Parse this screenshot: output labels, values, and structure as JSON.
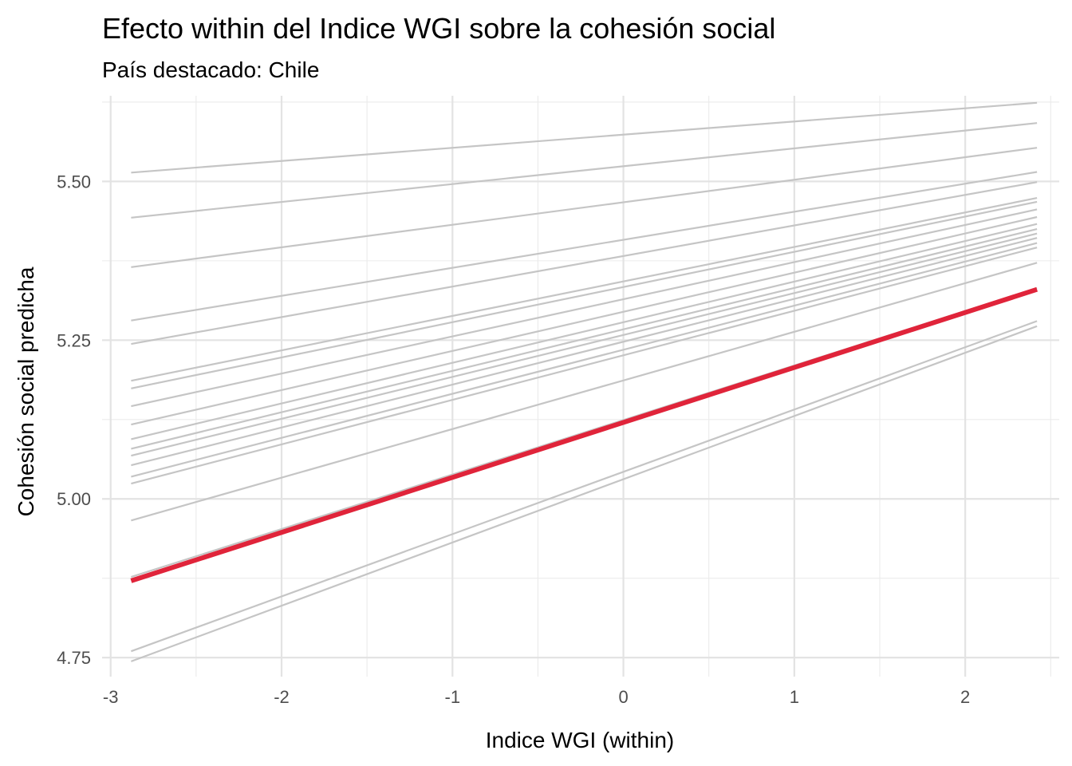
{
  "chart_data": {
    "type": "line",
    "title": "Efecto within del Indice WGI sobre la cohesión social",
    "subtitle": "País destacado: Chile",
    "xlabel": "Indice WGI (within)",
    "ylabel": "Cohesión social predicha",
    "xlim": [
      -3.05,
      2.55
    ],
    "ylim": [
      4.72,
      5.635
    ],
    "x_ticks": [
      -3,
      -2,
      -1,
      0,
      1,
      2
    ],
    "x_tick_labels": [
      "-3",
      "-2",
      "-1",
      "0",
      "1",
      "2"
    ],
    "y_ticks": [
      4.75,
      5.0,
      5.25,
      5.5
    ],
    "y_tick_labels": [
      "4.75",
      "5.00",
      "5.25",
      "5.50"
    ],
    "grid": true,
    "highlight_color": "#e0243a",
    "background_color": "#c5c5c5",
    "series": [
      {
        "x": [
          -2.88,
          2.42
        ],
        "y": [
          5.514,
          5.624
        ],
        "highlight": false
      },
      {
        "x": [
          -2.88,
          2.42
        ],
        "y": [
          5.443,
          5.592
        ],
        "highlight": false
      },
      {
        "x": [
          -2.88,
          2.42
        ],
        "y": [
          5.365,
          5.553
        ],
        "highlight": false
      },
      {
        "x": [
          -2.88,
          2.42
        ],
        "y": [
          5.281,
          5.515
        ],
        "highlight": false
      },
      {
        "x": [
          -2.88,
          2.42
        ],
        "y": [
          5.244,
          5.499
        ],
        "highlight": false
      },
      {
        "x": [
          -2.88,
          2.42
        ],
        "y": [
          5.186,
          5.474
        ],
        "highlight": false
      },
      {
        "x": [
          -2.88,
          2.42
        ],
        "y": [
          5.174,
          5.468
        ],
        "highlight": false
      },
      {
        "x": [
          -2.88,
          2.42
        ],
        "y": [
          5.146,
          5.456
        ],
        "highlight": false
      },
      {
        "x": [
          -2.88,
          2.42
        ],
        "y": [
          5.117,
          5.444
        ],
        "highlight": false
      },
      {
        "x": [
          -2.88,
          2.42
        ],
        "y": [
          5.094,
          5.433
        ],
        "highlight": false
      },
      {
        "x": [
          -2.88,
          2.42
        ],
        "y": [
          5.079,
          5.425
        ],
        "highlight": false
      },
      {
        "x": [
          -2.88,
          2.42
        ],
        "y": [
          5.068,
          5.418
        ],
        "highlight": false
      },
      {
        "x": [
          -2.88,
          2.42
        ],
        "y": [
          5.053,
          5.411
        ],
        "highlight": false
      },
      {
        "x": [
          -2.88,
          2.42
        ],
        "y": [
          5.035,
          5.403
        ],
        "highlight": false
      },
      {
        "x": [
          -2.88,
          2.42
        ],
        "y": [
          5.024,
          5.396
        ],
        "highlight": false
      },
      {
        "x": [
          -2.88,
          2.42
        ],
        "y": [
          4.966,
          5.372
        ],
        "highlight": false
      },
      {
        "x": [
          -2.88,
          2.42
        ],
        "y": [
          4.877,
          5.332
        ],
        "highlight": false
      },
      {
        "x": [
          -2.88,
          2.42
        ],
        "y": [
          4.76,
          5.28
        ],
        "highlight": false
      },
      {
        "x": [
          -2.88,
          2.42
        ],
        "y": [
          4.744,
          5.272
        ],
        "highlight": false
      },
      {
        "x": [
          -2.88,
          2.42
        ],
        "y": [
          4.871,
          5.33
        ],
        "highlight": true
      }
    ]
  }
}
